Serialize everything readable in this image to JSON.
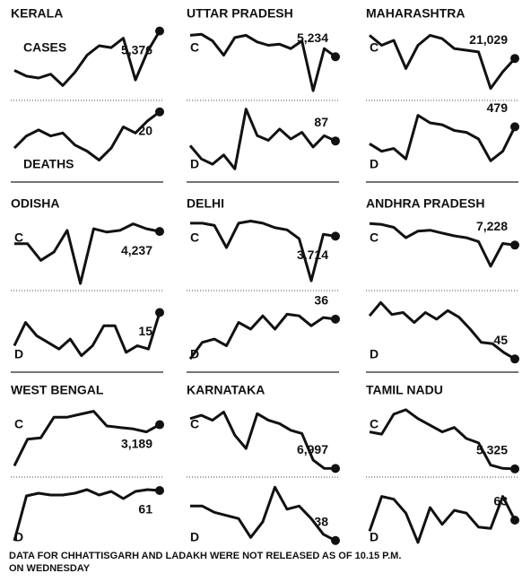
{
  "chart_data": [
    {
      "type": "line",
      "title": "KERALA",
      "label": "CASES",
      "values": [
        3300,
        3000,
        2900,
        3100,
        2500,
        3200,
        4100,
        4600,
        4500,
        5000,
        2800,
        4300,
        5376
      ],
      "value_labels": [
        null,
        null,
        null,
        null,
        null,
        null,
        null,
        null,
        null,
        null,
        null,
        null,
        "5,376"
      ],
      "ylim": [
        2000,
        5500
      ]
    },
    {
      "type": "line",
      "label": "DEATHS",
      "values": [
        8,
        12,
        14,
        12,
        13,
        9,
        7,
        4,
        8,
        15,
        13,
        17,
        20
      ],
      "ylim": [
        0,
        22
      ]
    },
    {
      "type": "line",
      "title": "UTTAR PRADESH",
      "label": "C",
      "values": [
        6200,
        6250,
        5950,
        5300,
        6100,
        6200,
        5900,
        5750,
        5800,
        5600,
        5950,
        3700,
        5600,
        5234
      ],
      "value_labels": [
        null,
        null,
        null,
        null,
        null,
        null,
        null,
        null,
        null,
        null,
        null,
        null,
        null,
        "5,234"
      ],
      "ylim": [
        3500,
        6500
      ]
    },
    {
      "type": "line",
      "label": "D",
      "values": [
        80,
        60,
        52,
        66,
        45,
        135,
        95,
        88,
        105,
        90,
        100,
        78,
        95,
        87
      ],
      "ylim": [
        40,
        140
      ]
    },
    {
      "type": "line",
      "title": "MAHARASHTRA",
      "label": "C",
      "values": [
        28000,
        25000,
        26500,
        18000,
        25000,
        28000,
        27000,
        24000,
        23500,
        23000,
        12000,
        17000,
        21029
      ],
      "value_labels": [
        null,
        null,
        null,
        null,
        null,
        null,
        null,
        null,
        null,
        null,
        null,
        null,
        "21,029"
      ],
      "ylim": [
        10000,
        30000
      ]
    },
    {
      "type": "line",
      "label": "D",
      "values": [
        300,
        220,
        250,
        140,
        600,
        520,
        500,
        440,
        420,
        350,
        120,
        220,
        479
      ],
      "ylim": [
        0,
        700
      ]
    },
    {
      "type": "line",
      "title": "ODISHA",
      "label": "C",
      "values": [
        3500,
        3500,
        2500,
        3000,
        4300,
        1100,
        4400,
        4200,
        4300,
        4700,
        4400,
        4237
      ],
      "value_labels": [
        null,
        null,
        null,
        null,
        null,
        null,
        null,
        null,
        null,
        null,
        null,
        "4,237"
      ],
      "ylim": [
        1000,
        5000
      ]
    },
    {
      "type": "line",
      "label": "D",
      "values": [
        5,
        12,
        8,
        6,
        4,
        7,
        2,
        5,
        11,
        11,
        3,
        5,
        4,
        15
      ],
      "ylim": [
        0,
        20
      ]
    },
    {
      "type": "line",
      "title": "DELHI",
      "label": "C",
      "values": [
        4300,
        4300,
        4200,
        3200,
        4300,
        4400,
        4300,
        4100,
        4000,
        3600,
        1700,
        3800,
        3714
      ],
      "value_labels": [
        null,
        null,
        null,
        null,
        null,
        null,
        null,
        null,
        null,
        null,
        null,
        null,
        "3,714"
      ],
      "ylim": [
        1500,
        4500
      ]
    },
    {
      "type": "line",
      "label": "D",
      "values": [
        12,
        22,
        24,
        20,
        34,
        30,
        38,
        30,
        39,
        38,
        32,
        37,
        36
      ],
      "ylim": [
        10,
        50
      ]
    },
    {
      "type": "line",
      "title": "ANDHRA PRADESH",
      "label": "C",
      "values": [
        9500,
        9400,
        9100,
        8000,
        8700,
        8800,
        8500,
        8200,
        8000,
        7600,
        5000,
        7400,
        7228
      ],
      "value_labels": [
        null,
        null,
        null,
        null,
        null,
        null,
        null,
        null,
        null,
        null,
        null,
        null,
        "7,228"
      ],
      "ylim": [
        3000,
        10000
      ]
    },
    {
      "type": "line",
      "label": "D",
      "values": [
        110,
        130,
        112,
        115,
        100,
        115,
        105,
        118,
        108,
        90,
        70,
        68,
        55,
        45
      ],
      "ylim": [
        40,
        140
      ]
    },
    {
      "type": "line",
      "title": "WEST BENGAL",
      "label": "C",
      "values": [
        400,
        2200,
        2300,
        3700,
        3700,
        3900,
        4100,
        3100,
        3000,
        2900,
        2700,
        3189
      ],
      "value_labels": [
        null,
        null,
        null,
        null,
        null,
        null,
        null,
        null,
        null,
        null,
        null,
        "3,189"
      ],
      "ylim": [
        0,
        4500
      ]
    },
    {
      "type": "line",
      "label": "D",
      "values": [
        5,
        55,
        58,
        56,
        56,
        58,
        62,
        56,
        60,
        52,
        60,
        62,
        61
      ],
      "ylim": [
        0,
        70
      ]
    },
    {
      "type": "line",
      "title": "KARNATAKA",
      "label": "C",
      "values": [
        10000,
        10200,
        9900,
        10400,
        9000,
        8200,
        10300,
        9900,
        9700,
        9300,
        9100,
        7500,
        7000,
        6997
      ],
      "value_labels": [
        null,
        null,
        null,
        null,
        null,
        null,
        null,
        null,
        null,
        null,
        null,
        null,
        null,
        "6,997"
      ],
      "ylim": [
        6800,
        10800
      ]
    },
    {
      "type": "line",
      "label": "D",
      "values": [
        60,
        60,
        56,
        54,
        52,
        40,
        50,
        72,
        58,
        60,
        52,
        42,
        38
      ],
      "ylim": [
        35,
        75
      ]
    },
    {
      "type": "line",
      "title": "TAMIL NADU",
      "label": "C",
      "values": [
        7000,
        6900,
        7800,
        8000,
        7600,
        7300,
        7000,
        7200,
        6700,
        6500,
        5500,
        5350,
        5325
      ],
      "value_labels": [
        null,
        null,
        null,
        null,
        null,
        null,
        null,
        null,
        null,
        null,
        null,
        null,
        "5,325"
      ],
      "ylim": [
        5200,
        8200
      ]
    },
    {
      "type": "line",
      "label": "D",
      "values": [
        55,
        80,
        78,
        68,
        47,
        72,
        60,
        70,
        68,
        58,
        57,
        80,
        63
      ],
      "ylim": [
        45,
        90
      ]
    }
  ],
  "note_lines": [
    "DATA FOR CHHATTISGARH AND LADAKH WERE NOT RELEASED AS OF 10.15 P.M.",
    "ON WEDNESDAY"
  ]
}
